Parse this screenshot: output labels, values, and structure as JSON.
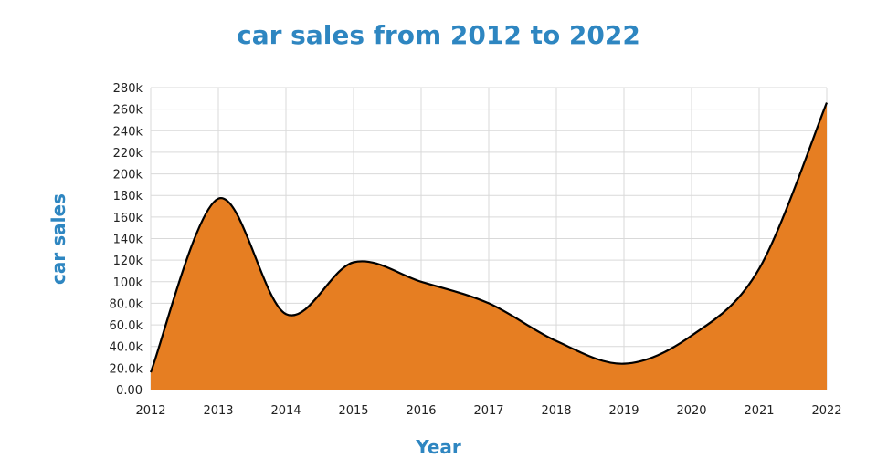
{
  "chart_data": {
    "type": "area",
    "title": "car sales from 2012 to 2022",
    "xlabel": "Year",
    "ylabel": "car sales",
    "x": [
      2012,
      2013,
      2014,
      2015,
      2016,
      2017,
      2018,
      2019,
      2020,
      2021,
      2022
    ],
    "series": [
      {
        "values": [
          16000,
          177000,
          70000,
          118000,
          100000,
          80000,
          45000,
          24000,
          50000,
          112000,
          266000
        ]
      }
    ],
    "ylim": [
      0,
      280000
    ],
    "y_ticks": [
      "0.00",
      "20.0k",
      "40.0k",
      "60.0k",
      "80.0k",
      "100k",
      "120k",
      "140k",
      "160k",
      "180k",
      "200k",
      "220k",
      "240k",
      "260k",
      "280k"
    ],
    "x_ticks": [
      "2012",
      "2013",
      "2014",
      "2015",
      "2016",
      "2017",
      "2018",
      "2019",
      "2020",
      "2021",
      "2022"
    ],
    "grid": true,
    "colors": {
      "fill": "#e67e22",
      "line": "#000000",
      "title": "#2e86c1",
      "grid": "#d9d9d9"
    }
  }
}
